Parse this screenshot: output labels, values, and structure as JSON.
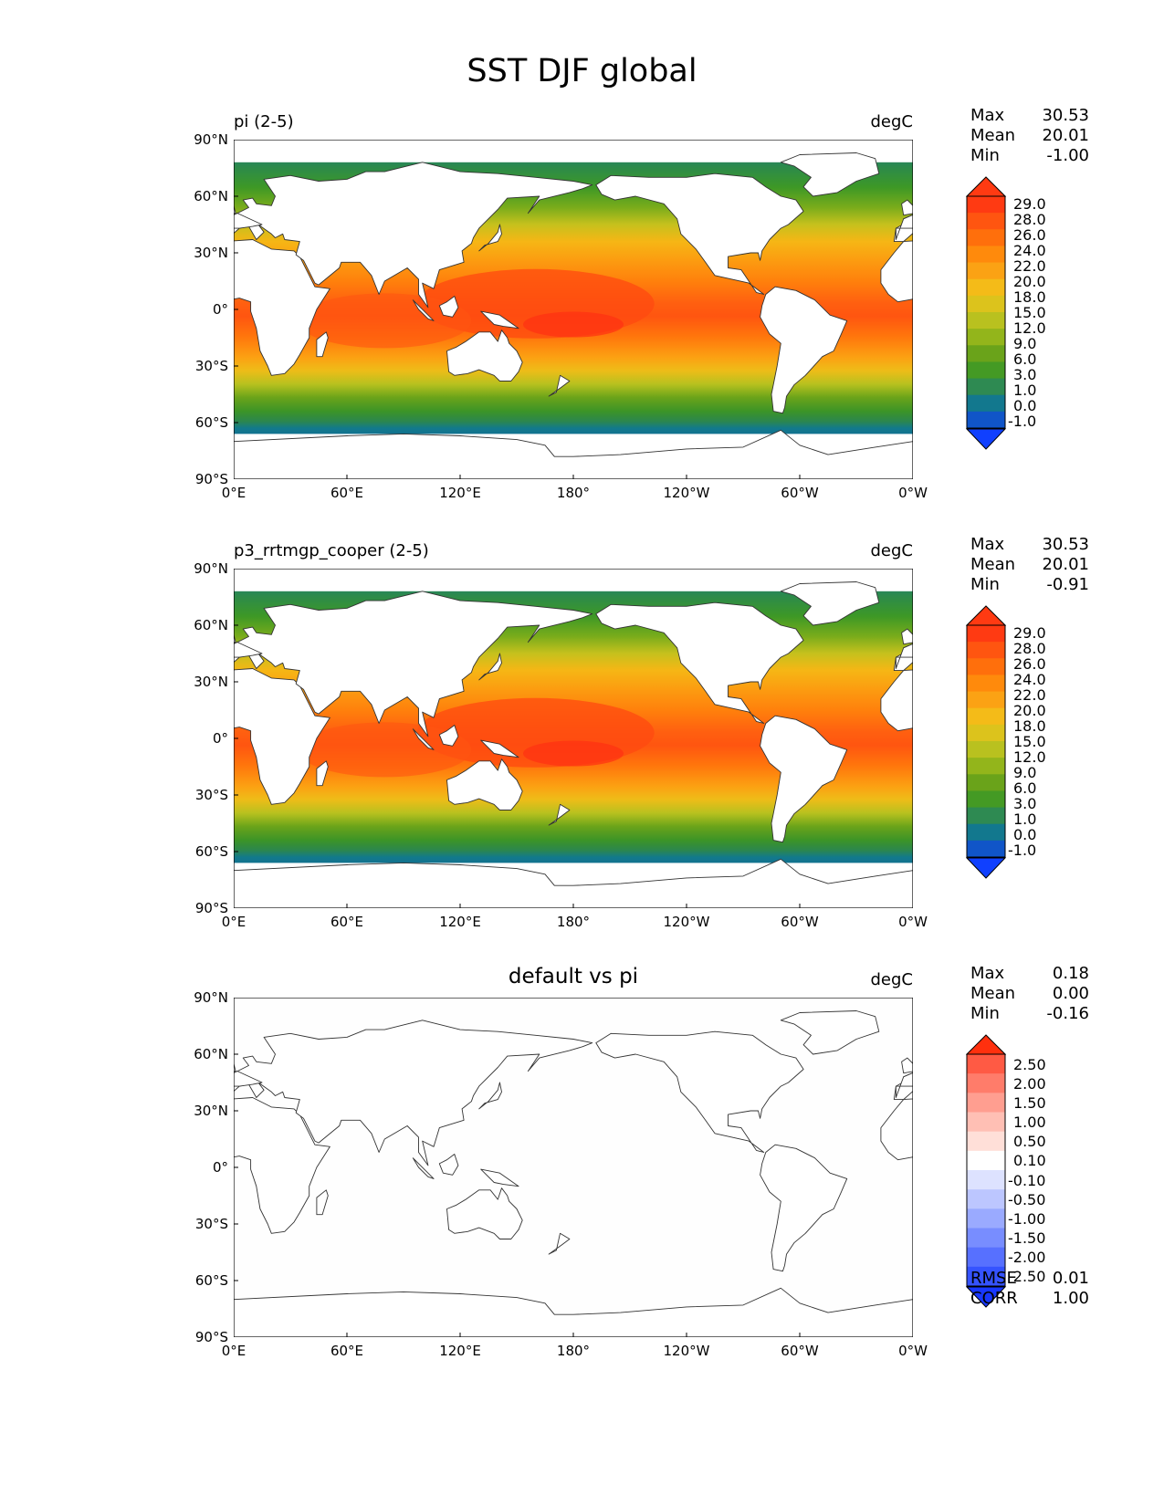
{
  "title": "SST DJF global",
  "x_ticks": [
    "0°E",
    "60°E",
    "120°E",
    "180°",
    "120°W",
    "60°W",
    "0°W"
  ],
  "y_ticks": [
    "90°N",
    "60°N",
    "30°N",
    "0°",
    "30°S",
    "60°S",
    "90°S"
  ],
  "panels": [
    {
      "title": "pi (2-5)",
      "units": "degC",
      "stats": [
        {
          "label": "Max",
          "value": "30.53"
        },
        {
          "label": "Mean",
          "value": "20.01"
        },
        {
          "label": "Min",
          "value": "-1.00"
        }
      ],
      "colorbar_labels": [
        "29.0",
        "28.0",
        "26.0",
        "24.0",
        "22.0",
        "20.0",
        "18.0",
        "15.0",
        "12.0",
        "9.0",
        "6.0",
        "3.0",
        "1.0",
        "0.0",
        "-1.0"
      ],
      "colorbar_colors": [
        "#ff3a12",
        "#ff3a12",
        "#ff5510",
        "#ff6f0c",
        "#ff8a0c",
        "#fba214",
        "#f4bb18",
        "#dcc31c",
        "#b9c11f",
        "#93b51b",
        "#6aa31a",
        "#449a24",
        "#2e8a52",
        "#12788e",
        "#1055c8",
        "#1040ff"
      ]
    },
    {
      "title": "p3_rrtmgp_cooper (2-5)",
      "units": "degC",
      "stats": [
        {
          "label": "Max",
          "value": "30.53"
        },
        {
          "label": "Mean",
          "value": "20.01"
        },
        {
          "label": "Min",
          "value": "-0.91"
        }
      ],
      "colorbar_labels": [
        "29.0",
        "28.0",
        "26.0",
        "24.0",
        "22.0",
        "20.0",
        "18.0",
        "15.0",
        "12.0",
        "9.0",
        "6.0",
        "3.0",
        "1.0",
        "0.0",
        "-1.0"
      ],
      "colorbar_colors": [
        "#ff3a12",
        "#ff3a12",
        "#ff5510",
        "#ff6f0c",
        "#ff8a0c",
        "#fba214",
        "#f4bb18",
        "#dcc31c",
        "#b9c11f",
        "#93b51b",
        "#6aa31a",
        "#449a24",
        "#2e8a52",
        "#12788e",
        "#1055c8",
        "#1040ff"
      ]
    },
    {
      "title": "default vs pi",
      "units": "degC",
      "stats": [
        {
          "label": "Max",
          "value": "0.18"
        },
        {
          "label": "Mean",
          "value": "0.00"
        },
        {
          "label": "Min",
          "value": "-0.16"
        }
      ],
      "colorbar_labels": [
        "2.50",
        "2.00",
        "1.50",
        "1.00",
        "0.50",
        "0.10",
        "-0.10",
        "-0.50",
        "-1.00",
        "-1.50",
        "-2.00",
        "-2.50"
      ],
      "colorbar_colors": [
        "#ff300e",
        "#ff5a44",
        "#ff7c6a",
        "#ff9e90",
        "#ffbfb4",
        "#ffdfd8",
        "#ffffff",
        "#dde2ff",
        "#bcc6ff",
        "#9aaaff",
        "#788dff",
        "#5770ff",
        "#3553ff",
        "#1838ff"
      ],
      "bottom_stats": [
        {
          "label": "RMSE",
          "value": "0.01"
        },
        {
          "label": "CORR",
          "value": "1.00"
        }
      ]
    }
  ],
  "chart_data": [
    {
      "type": "heatmap",
      "title": "pi (2-5)",
      "units": "degC",
      "xlim": [
        0,
        360
      ],
      "ylim": [
        -90,
        90
      ],
      "stats": {
        "max": 30.53,
        "mean": 20.01,
        "min": -1.0
      },
      "levels": [
        -1.0,
        0.0,
        1.0,
        3.0,
        6.0,
        9.0,
        12.0,
        15.0,
        18.0,
        20.0,
        22.0,
        24.0,
        26.0,
        28.0,
        29.0
      ]
    },
    {
      "type": "heatmap",
      "title": "p3_rrtmgp_cooper (2-5)",
      "units": "degC",
      "xlim": [
        0,
        360
      ],
      "ylim": [
        -90,
        90
      ],
      "stats": {
        "max": 30.53,
        "mean": 20.01,
        "min": -0.91
      },
      "levels": [
        -1.0,
        0.0,
        1.0,
        3.0,
        6.0,
        9.0,
        12.0,
        15.0,
        18.0,
        20.0,
        22.0,
        24.0,
        26.0,
        28.0,
        29.0
      ]
    },
    {
      "type": "heatmap",
      "title": "default vs pi",
      "units": "degC",
      "xlim": [
        0,
        360
      ],
      "ylim": [
        -90,
        90
      ],
      "stats": {
        "max": 0.18,
        "mean": 0.0,
        "min": -0.16,
        "rmse": 0.01,
        "corr": 1.0
      },
      "levels": [
        -2.5,
        -2.0,
        -1.5,
        -1.0,
        -0.5,
        -0.1,
        0.1,
        0.5,
        1.0,
        1.5,
        2.0,
        2.5
      ]
    }
  ]
}
